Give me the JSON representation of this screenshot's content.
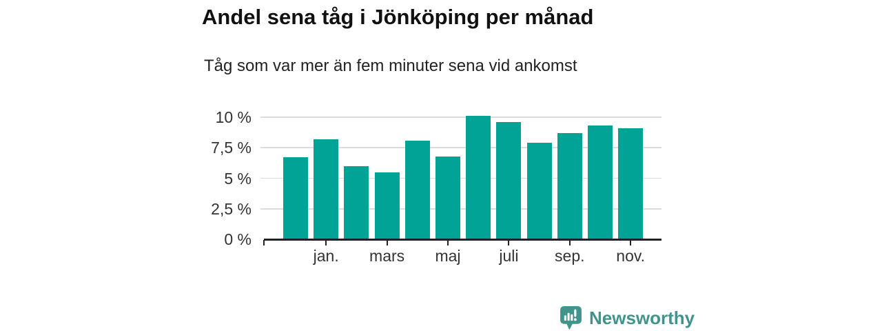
{
  "chart_data": {
    "type": "bar",
    "title": "Andel sena tåg i Jönköping per månad",
    "subtitle": "Tåg som var mer än fem minuter sena vid ankomst",
    "unit": "%",
    "values": [
      6.7,
      8.2,
      6.0,
      5.5,
      8.1,
      6.8,
      10.1,
      9.6,
      7.9,
      8.7,
      9.3,
      9.1
    ],
    "x_ticks": [
      {
        "index": 1,
        "label": "jan."
      },
      {
        "index": 3,
        "label": "mars"
      },
      {
        "index": 5,
        "label": "maj"
      },
      {
        "index": 7,
        "label": "juli"
      },
      {
        "index": 9,
        "label": "sep."
      },
      {
        "index": 11,
        "label": "nov."
      }
    ],
    "y_ticks": [
      0,
      2.5,
      5,
      7.5,
      10
    ],
    "y_tick_labels": [
      "0 %",
      "2,5 %",
      "5 %",
      "7,5 %",
      "10 %"
    ],
    "ylim": [
      0,
      10
    ],
    "grid": "horizontal",
    "legend": "none",
    "bar_color": "#00a396"
  },
  "branding": {
    "name": "Newsworthy",
    "icon": "newsworthy-logo-icon",
    "color": "#40948c"
  },
  "colors": {
    "background": "#ffffff",
    "bar": "#00a396",
    "gridline": "#dcdcdc",
    "axis": "#222222",
    "tick_text": "#333333",
    "title_text": "#111111",
    "subtitle_text": "#222222"
  }
}
